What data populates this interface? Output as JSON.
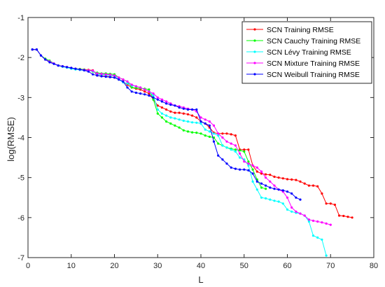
{
  "chart_data": {
    "type": "line",
    "title": "",
    "xlabel": "L",
    "ylabel": "log(RMSE)",
    "xlim": [
      0,
      80
    ],
    "ylim": [
      -7,
      -1
    ],
    "xticks": [
      0,
      10,
      20,
      30,
      40,
      50,
      60,
      70,
      80
    ],
    "yticks": [
      -7,
      -6,
      -5,
      -4,
      -3,
      -2,
      -1
    ],
    "grid": false,
    "legend_position": "top-right",
    "series": [
      {
        "name": "SCN Training RMSE",
        "color": "#ff0000",
        "x": [
          1,
          2,
          3,
          4,
          5,
          6,
          7,
          8,
          9,
          10,
          11,
          12,
          13,
          14,
          15,
          16,
          17,
          18,
          19,
          20,
          21,
          22,
          23,
          24,
          25,
          26,
          27,
          28,
          29,
          30,
          31,
          32,
          33,
          34,
          35,
          36,
          37,
          38,
          39,
          40,
          41,
          42,
          43,
          44,
          45,
          46,
          47,
          48,
          49,
          50,
          51,
          52,
          53,
          54,
          55,
          56,
          57,
          58,
          59,
          60,
          61,
          62,
          63,
          64,
          65,
          66,
          67,
          68,
          69,
          70,
          71,
          72,
          73,
          74,
          75
        ],
        "y": [
          -1.8,
          -1.8,
          -1.95,
          -2.05,
          -2.1,
          -2.15,
          -2.2,
          -2.22,
          -2.24,
          -2.26,
          -2.28,
          -2.29,
          -2.3,
          -2.31,
          -2.32,
          -2.45,
          -2.46,
          -2.47,
          -2.48,
          -2.5,
          -2.55,
          -2.6,
          -2.68,
          -2.75,
          -2.78,
          -2.8,
          -2.85,
          -2.9,
          -3.05,
          -3.2,
          -3.25,
          -3.3,
          -3.35,
          -3.38,
          -3.38,
          -3.4,
          -3.42,
          -3.45,
          -3.5,
          -3.6,
          -3.65,
          -3.75,
          -3.88,
          -3.9,
          -3.9,
          -3.9,
          -3.92,
          -3.95,
          -4.3,
          -4.3,
          -4.3,
          -4.7,
          -4.85,
          -4.9,
          -4.92,
          -4.93,
          -4.98,
          -5.0,
          -5.02,
          -5.04,
          -5.05,
          -5.06,
          -5.1,
          -5.15,
          -5.2,
          -5.2,
          -5.22,
          -5.4,
          -5.65,
          -5.65,
          -5.68,
          -5.95,
          -5.96,
          -5.98,
          -6.0
        ]
      },
      {
        "name": "SCN Cauchy Training RMSE",
        "color": "#00ff00",
        "x": [
          1,
          2,
          3,
          4,
          5,
          6,
          7,
          8,
          9,
          10,
          11,
          12,
          13,
          14,
          15,
          16,
          17,
          18,
          19,
          20,
          21,
          22,
          23,
          24,
          25,
          26,
          27,
          28,
          29,
          30,
          31,
          32,
          33,
          34,
          35,
          36,
          37,
          38,
          39,
          40,
          41,
          42,
          43,
          44,
          45,
          46,
          47,
          48,
          49,
          50,
          51,
          52,
          53,
          54,
          55
        ],
        "y": [
          -1.8,
          -1.8,
          -1.95,
          -2.03,
          -2.08,
          -2.15,
          -2.2,
          -2.23,
          -2.25,
          -2.27,
          -2.28,
          -2.29,
          -2.3,
          -2.32,
          -2.35,
          -2.38,
          -2.4,
          -2.4,
          -2.41,
          -2.42,
          -2.5,
          -2.55,
          -2.6,
          -2.75,
          -2.76,
          -2.77,
          -2.78,
          -2.8,
          -3.05,
          -3.4,
          -3.5,
          -3.6,
          -3.65,
          -3.7,
          -3.75,
          -3.82,
          -3.85,
          -3.87,
          -3.88,
          -3.9,
          -3.95,
          -3.98,
          -4.0,
          -4.15,
          -4.2,
          -4.25,
          -4.28,
          -4.3,
          -4.32,
          -4.35,
          -4.6,
          -4.8,
          -5.05,
          -5.25,
          -5.28
        ]
      },
      {
        "name": "SCN Lévy Training RMSE",
        "color": "#00ffff",
        "x": [
          1,
          2,
          3,
          4,
          5,
          6,
          7,
          8,
          9,
          10,
          11,
          12,
          13,
          14,
          15,
          16,
          17,
          18,
          19,
          20,
          21,
          22,
          23,
          24,
          25,
          26,
          27,
          28,
          29,
          30,
          31,
          32,
          33,
          34,
          35,
          36,
          37,
          38,
          39,
          40,
          41,
          42,
          43,
          44,
          45,
          46,
          47,
          48,
          49,
          50,
          51,
          52,
          53,
          54,
          55,
          56,
          57,
          58,
          59,
          60,
          61,
          62,
          63,
          64,
          65,
          66,
          67,
          68,
          69
        ],
        "y": [
          -1.8,
          -1.8,
          -1.95,
          -2.05,
          -2.1,
          -2.15,
          -2.2,
          -2.23,
          -2.25,
          -2.28,
          -2.3,
          -2.31,
          -2.32,
          -2.33,
          -2.34,
          -2.42,
          -2.43,
          -2.44,
          -2.45,
          -2.46,
          -2.55,
          -2.62,
          -2.65,
          -2.7,
          -2.72,
          -2.75,
          -2.8,
          -2.85,
          -2.95,
          -3.3,
          -3.4,
          -3.45,
          -3.5,
          -3.52,
          -3.55,
          -3.58,
          -3.6,
          -3.62,
          -3.63,
          -3.65,
          -3.8,
          -3.85,
          -3.9,
          -3.95,
          -4.2,
          -4.25,
          -4.3,
          -4.35,
          -4.5,
          -4.55,
          -4.7,
          -5.1,
          -5.3,
          -5.5,
          -5.52,
          -5.55,
          -5.58,
          -5.6,
          -5.65,
          -5.8,
          -5.85,
          -5.88,
          -5.9,
          -5.95,
          -6.1,
          -6.45,
          -6.5,
          -6.55,
          -6.95
        ]
      },
      {
        "name": "SCN Mixture Training RMSE",
        "color": "#ff00ff",
        "x": [
          1,
          2,
          3,
          4,
          5,
          6,
          7,
          8,
          9,
          10,
          11,
          12,
          13,
          14,
          15,
          16,
          17,
          18,
          19,
          20,
          21,
          22,
          23,
          24,
          25,
          26,
          27,
          28,
          29,
          30,
          31,
          32,
          33,
          34,
          35,
          36,
          37,
          38,
          39,
          40,
          41,
          42,
          43,
          44,
          45,
          46,
          47,
          48,
          49,
          50,
          51,
          52,
          53,
          54,
          55,
          56,
          57,
          58,
          59,
          60,
          61,
          62,
          63,
          64,
          65,
          66,
          67,
          68,
          69,
          70
        ],
        "y": [
          -1.8,
          -1.8,
          -1.95,
          -2.05,
          -2.1,
          -2.15,
          -2.2,
          -2.22,
          -2.24,
          -2.26,
          -2.28,
          -2.3,
          -2.31,
          -2.32,
          -2.33,
          -2.4,
          -2.41,
          -2.42,
          -2.43,
          -2.45,
          -2.5,
          -2.55,
          -2.6,
          -2.68,
          -2.72,
          -2.75,
          -2.8,
          -2.85,
          -2.9,
          -3.0,
          -3.05,
          -3.1,
          -3.15,
          -3.2,
          -3.22,
          -3.25,
          -3.28,
          -3.3,
          -3.35,
          -3.5,
          -3.55,
          -3.6,
          -3.7,
          -3.9,
          -4.0,
          -4.1,
          -4.15,
          -4.2,
          -4.4,
          -4.6,
          -4.65,
          -4.7,
          -4.75,
          -4.85,
          -5.0,
          -5.1,
          -5.2,
          -5.3,
          -5.35,
          -5.5,
          -5.75,
          -5.85,
          -5.9,
          -5.95,
          -6.05,
          -6.08,
          -6.1,
          -6.12,
          -6.15,
          -6.18
        ]
      },
      {
        "name": "SCN Weibull Training RMSE",
        "color": "#0000ff",
        "x": [
          1,
          2,
          3,
          4,
          5,
          6,
          7,
          8,
          9,
          10,
          11,
          12,
          13,
          14,
          15,
          16,
          17,
          18,
          19,
          20,
          21,
          22,
          23,
          24,
          25,
          26,
          27,
          28,
          29,
          30,
          31,
          32,
          33,
          34,
          35,
          36,
          37,
          38,
          39,
          40,
          41,
          42,
          43,
          44,
          45,
          46,
          47,
          48,
          49,
          50,
          51,
          52,
          53,
          54,
          55,
          56,
          57,
          58,
          59,
          60,
          61,
          62,
          63
        ],
        "y": [
          -1.8,
          -1.8,
          -1.95,
          -2.05,
          -2.12,
          -2.16,
          -2.2,
          -2.22,
          -2.24,
          -2.26,
          -2.28,
          -2.3,
          -2.32,
          -2.35,
          -2.42,
          -2.45,
          -2.47,
          -2.48,
          -2.49,
          -2.5,
          -2.55,
          -2.6,
          -2.75,
          -2.85,
          -2.88,
          -2.9,
          -2.92,
          -2.95,
          -3.0,
          -3.05,
          -3.1,
          -3.15,
          -3.18,
          -3.2,
          -3.25,
          -3.28,
          -3.3,
          -3.3,
          -3.3,
          -3.6,
          -3.65,
          -3.7,
          -4.1,
          -4.45,
          -4.55,
          -4.65,
          -4.75,
          -4.78,
          -4.8,
          -4.8,
          -4.82,
          -4.9,
          -5.1,
          -5.15,
          -5.2,
          -5.25,
          -5.28,
          -5.3,
          -5.32,
          -5.35,
          -5.4,
          -5.5,
          -5.55
        ]
      }
    ]
  }
}
